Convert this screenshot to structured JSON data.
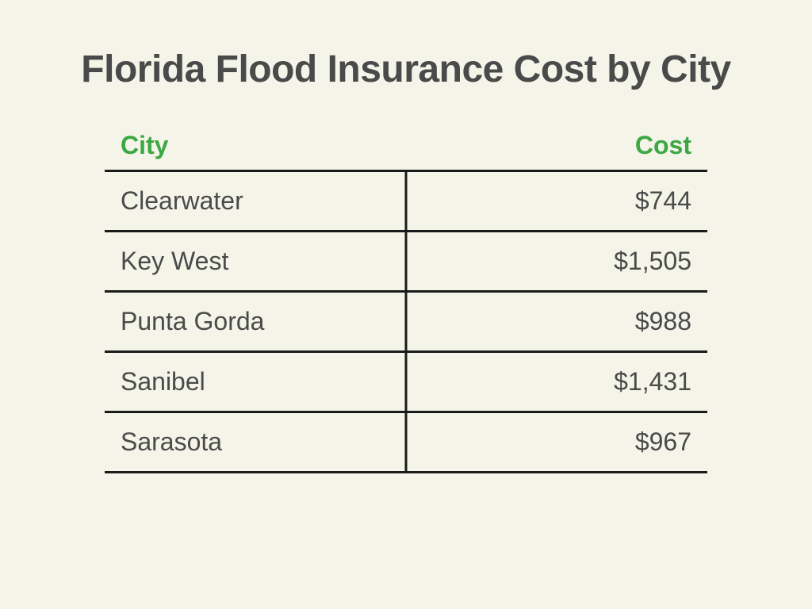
{
  "title": "Florida Flood Insurance Cost by City",
  "table": {
    "type": "table",
    "columns": [
      "City",
      "Cost"
    ],
    "header_color": "#3ba843",
    "header_fontsize": 32,
    "text_color": "#4a4a4a",
    "cell_fontsize": 32,
    "border_color": "#1a1a1a",
    "border_width": 3,
    "background_color": "#f5f4e8",
    "column_alignment": [
      "left",
      "right"
    ],
    "rows": [
      {
        "city": "Clearwater",
        "cost": "$744"
      },
      {
        "city": "Key West",
        "cost": "$1,505"
      },
      {
        "city": "Punta Gorda",
        "cost": "$988"
      },
      {
        "city": "Sanibel",
        "cost": "$1,431"
      },
      {
        "city": "Sarasota",
        "cost": "$967"
      }
    ]
  },
  "title_fontsize": 48,
  "title_color": "#4a4a4a"
}
